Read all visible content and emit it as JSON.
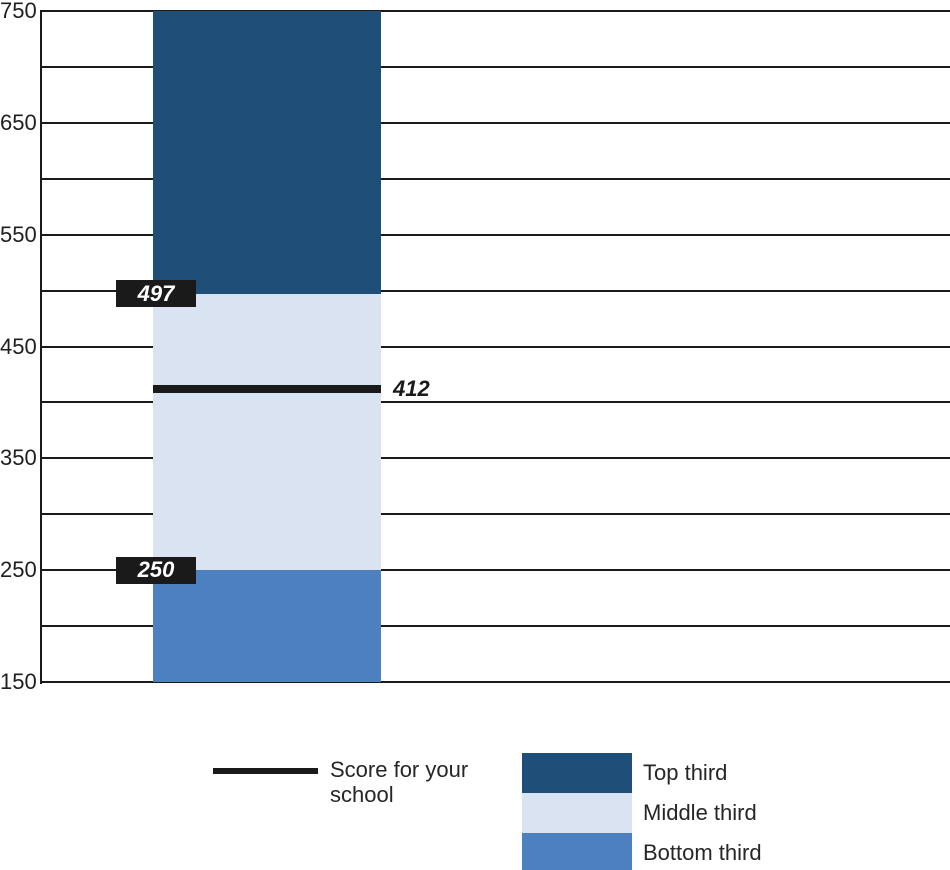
{
  "chart_data": {
    "type": "bar",
    "title": "",
    "xlabel": "",
    "ylabel": "",
    "ylim": [
      150,
      750
    ],
    "y_tick_labels": [
      "750",
      "650",
      "550",
      "450",
      "350",
      "250",
      "150"
    ],
    "grid_step": 50,
    "grid": true,
    "segments": [
      {
        "name": "Top third",
        "from": 497,
        "to": 750,
        "color": "#1F4E79"
      },
      {
        "name": "Middle third",
        "from": 250,
        "to": 497,
        "color": "#DAE3F1"
      },
      {
        "name": "Bottom third",
        "from": 150,
        "to": 250,
        "color": "#4C80BE"
      }
    ],
    "boundary_labels": [
      {
        "value": 497,
        "text": "497"
      },
      {
        "value": 250,
        "text": "250"
      }
    ],
    "reference_line": {
      "value": 412,
      "label": "412",
      "color": "#1A1A1A"
    },
    "legend": {
      "position": "bottom",
      "entries": [
        {
          "label": "Score for your school",
          "swatch": "line",
          "color": "#1A1A1A"
        },
        {
          "label": "Top third",
          "swatch": "square",
          "color": "#1F4E79"
        },
        {
          "label": "Middle third",
          "swatch": "square",
          "color": "#DAE3F1"
        },
        {
          "label": "Bottom third",
          "swatch": "square",
          "color": "#4C80BE"
        }
      ]
    },
    "colors": {
      "top_third": "#1F4E79",
      "middle_third": "#DAE3F1",
      "bottom_third": "#4C80BE",
      "line_and_grid": "#1A1A1A",
      "label_box_bg": "#1A1A1A",
      "label_box_text": "#FFFFFF"
    }
  }
}
